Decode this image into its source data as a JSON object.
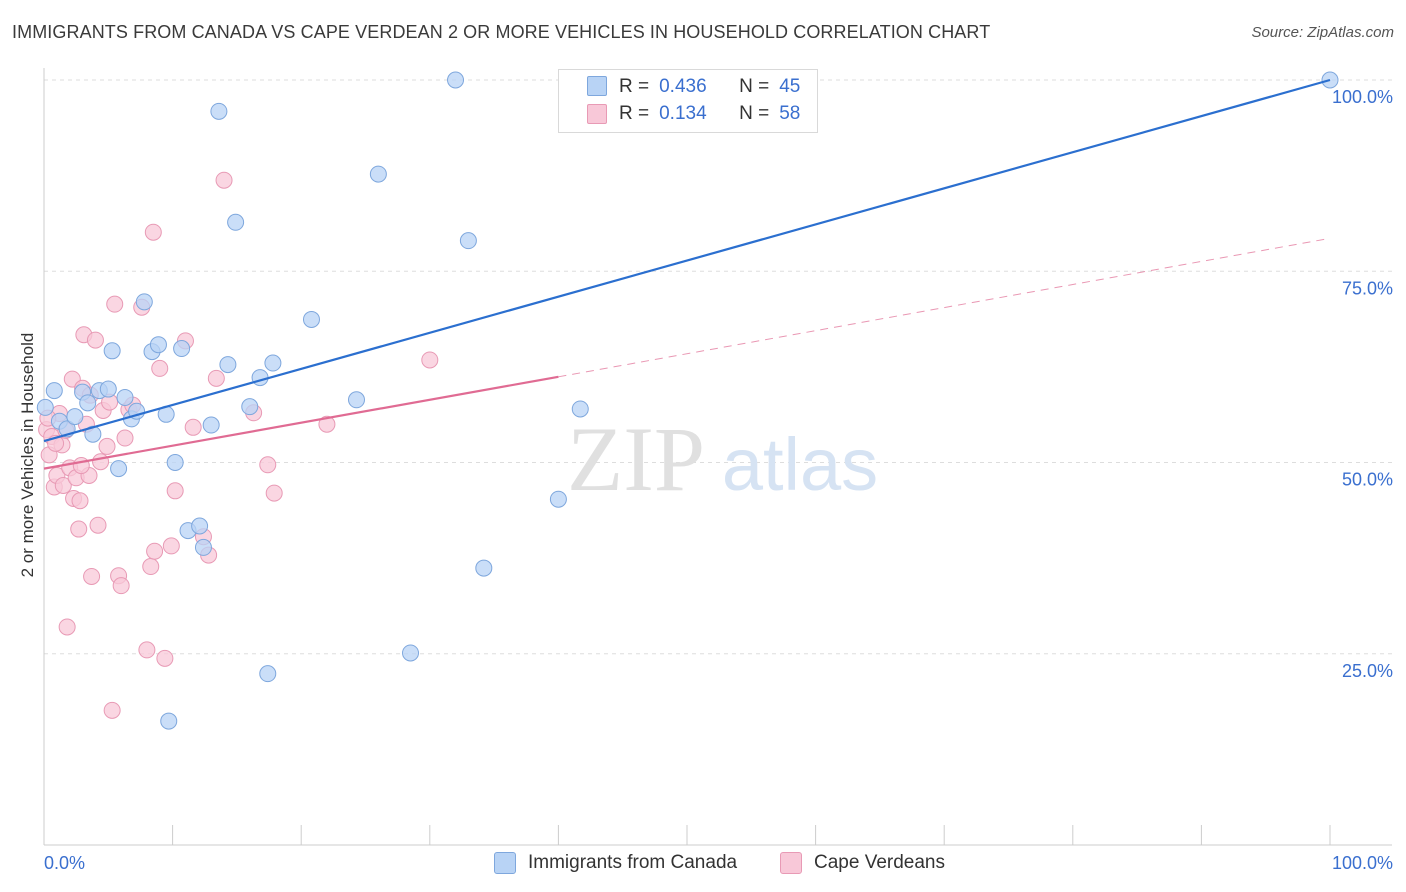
{
  "header": {
    "title": "IMMIGRANTS FROM CANADA VS CAPE VERDEAN 2 OR MORE VEHICLES IN HOUSEHOLD CORRELATION CHART",
    "source": "Source: ZipAtlas.com"
  },
  "watermark": {
    "zip": "ZIP",
    "atlas": "atlas"
  },
  "legend": {
    "r_label": "R =",
    "n_label": "N =",
    "rows": [
      {
        "r": "0.436",
        "n": "45"
      },
      {
        "r": "0.134",
        "n": "58"
      }
    ]
  },
  "colors": {
    "blue_fill": "#b8d3f5",
    "blue_stroke": "#7ea7dd",
    "blue_line": "#2b6fcf",
    "pink_fill": "#f8c8d8",
    "pink_stroke": "#e89ab5",
    "pink_line": "#e06b93",
    "axis_text": "#3a6fcf",
    "grid": "#dddddd"
  },
  "chart_data": {
    "type": "scatter",
    "title": "IMMIGRANTS FROM CANADA VS CAPE VERDEAN 2 OR MORE VEHICLES IN HOUSEHOLD CORRELATION CHART",
    "xlabel": "",
    "ylabel": "2 or more Vehicles in Household",
    "xlim": [
      0,
      100
    ],
    "ylim": [
      0,
      100
    ],
    "x_tick_labels": [
      "0.0%",
      "100.0%"
    ],
    "y_tick_labels": [
      "25.0%",
      "50.0%",
      "75.0%",
      "100.0%"
    ],
    "y_ticks": [
      25,
      50,
      75,
      100
    ],
    "grid": true,
    "legend_position": "bottom-center",
    "series": [
      {
        "name": "Immigrants from Canada",
        "color": "#b8d3f5",
        "points": [
          [
            0.1,
            57.2
          ],
          [
            0.8,
            59.4
          ],
          [
            1.2,
            55.4
          ],
          [
            1.8,
            54.4
          ],
          [
            2.4,
            56.0
          ],
          [
            3.0,
            59.2
          ],
          [
            3.4,
            57.8
          ],
          [
            3.8,
            53.7
          ],
          [
            4.3,
            59.4
          ],
          [
            5.0,
            59.6
          ],
          [
            5.3,
            64.6
          ],
          [
            5.8,
            49.2
          ],
          [
            6.3,
            58.5
          ],
          [
            6.8,
            55.7
          ],
          [
            7.2,
            56.7
          ],
          [
            7.8,
            71.0
          ],
          [
            8.4,
            64.5
          ],
          [
            8.9,
            65.4
          ],
          [
            9.5,
            56.3
          ],
          [
            9.7,
            16.2
          ],
          [
            10.2,
            50.0
          ],
          [
            10.7,
            64.9
          ],
          [
            11.2,
            41.1
          ],
          [
            12.1,
            41.7
          ],
          [
            12.4,
            38.9
          ],
          [
            13.0,
            54.9
          ],
          [
            13.6,
            95.9
          ],
          [
            14.3,
            62.8
          ],
          [
            14.9,
            81.4
          ],
          [
            16.0,
            57.3
          ],
          [
            16.8,
            61.1
          ],
          [
            17.4,
            22.4
          ],
          [
            17.8,
            63.0
          ],
          [
            20.8,
            68.7
          ],
          [
            24.3,
            58.2
          ],
          [
            26.0,
            87.7
          ],
          [
            28.5,
            25.1
          ],
          [
            32.0,
            100.0
          ],
          [
            33.0,
            79.0
          ],
          [
            34.2,
            36.2
          ],
          [
            40.0,
            45.2
          ],
          [
            41.7,
            57.0
          ],
          [
            47.0,
            100.0
          ],
          [
            50.0,
            100.0
          ],
          [
            100.0,
            100.0
          ]
        ]
      },
      {
        "name": "Cape Verdeans",
        "color": "#f8c8d8",
        "points": [
          [
            0.2,
            54.3
          ],
          [
            0.4,
            51.0
          ],
          [
            0.6,
            53.4
          ],
          [
            0.8,
            46.8
          ],
          [
            1.0,
            48.3
          ],
          [
            1.2,
            56.4
          ],
          [
            1.4,
            52.3
          ],
          [
            1.5,
            47.0
          ],
          [
            1.7,
            54.2
          ],
          [
            1.8,
            28.5
          ],
          [
            2.0,
            49.3
          ],
          [
            2.2,
            60.9
          ],
          [
            2.3,
            45.3
          ],
          [
            2.5,
            48.0
          ],
          [
            2.7,
            41.3
          ],
          [
            2.8,
            45.0
          ],
          [
            3.0,
            59.7
          ],
          [
            3.1,
            66.7
          ],
          [
            3.3,
            55.0
          ],
          [
            3.5,
            48.3
          ],
          [
            3.7,
            35.1
          ],
          [
            4.0,
            66.0
          ],
          [
            4.2,
            41.8
          ],
          [
            4.4,
            50.1
          ],
          [
            4.6,
            56.8
          ],
          [
            4.9,
            52.1
          ],
          [
            5.1,
            57.9
          ],
          [
            5.3,
            17.6
          ],
          [
            5.5,
            70.7
          ],
          [
            5.8,
            35.2
          ],
          [
            6.0,
            33.9
          ],
          [
            6.3,
            53.2
          ],
          [
            6.6,
            56.9
          ],
          [
            7.6,
            70.3
          ],
          [
            8.0,
            25.5
          ],
          [
            8.3,
            36.4
          ],
          [
            8.5,
            80.1
          ],
          [
            8.6,
            38.4
          ],
          [
            9.0,
            62.3
          ],
          [
            9.4,
            24.4
          ],
          [
            9.9,
            39.1
          ],
          [
            10.2,
            46.3
          ],
          [
            11.0,
            65.9
          ],
          [
            11.6,
            54.6
          ],
          [
            12.4,
            40.3
          ],
          [
            12.8,
            37.9
          ],
          [
            13.4,
            61.0
          ],
          [
            14.0,
            86.9
          ],
          [
            16.3,
            56.5
          ],
          [
            17.4,
            49.7
          ],
          [
            17.9,
            46.0
          ],
          [
            22.0,
            55.0
          ],
          [
            30.0,
            63.4
          ],
          [
            0.3,
            55.8
          ],
          [
            0.9,
            52.5
          ],
          [
            3.6,
            58.8
          ],
          [
            6.9,
            57.5
          ],
          [
            2.9,
            49.6
          ]
        ]
      }
    ],
    "trend_lines": [
      {
        "series": "Immigrants from Canada",
        "x": [
          0,
          100
        ],
        "y": [
          52.8,
          100.0
        ],
        "style": "solid"
      },
      {
        "series": "Cape Verdeans",
        "x": [
          0,
          40
        ],
        "y": [
          49.2,
          61.2
        ],
        "style": "solid"
      },
      {
        "series": "Cape Verdeans",
        "x": [
          40,
          100
        ],
        "y": [
          61.2,
          79.3
        ],
        "style": "dashed"
      }
    ]
  },
  "bottom_legend": {
    "items": [
      {
        "label": "Immigrants from Canada"
      },
      {
        "label": "Cape Verdeans"
      }
    ]
  }
}
